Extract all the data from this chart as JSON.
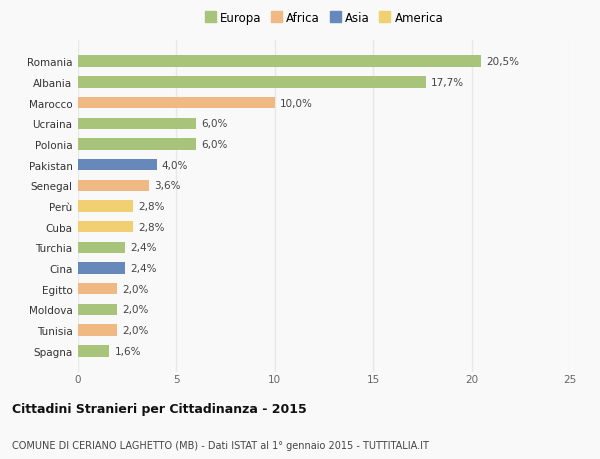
{
  "categories": [
    "Romania",
    "Albania",
    "Marocco",
    "Ucraina",
    "Polonia",
    "Pakistan",
    "Senegal",
    "Perù",
    "Cuba",
    "Turchia",
    "Cina",
    "Egitto",
    "Moldova",
    "Tunisia",
    "Spagna"
  ],
  "values": [
    20.5,
    17.7,
    10.0,
    6.0,
    6.0,
    4.0,
    3.6,
    2.8,
    2.8,
    2.4,
    2.4,
    2.0,
    2.0,
    2.0,
    1.6
  ],
  "continents": [
    "Europa",
    "Europa",
    "Africa",
    "Europa",
    "Europa",
    "Asia",
    "Africa",
    "America",
    "America",
    "Europa",
    "Asia",
    "Africa",
    "Europa",
    "Africa",
    "Europa"
  ],
  "colors": {
    "Europa": "#a8c47a",
    "Africa": "#f0b882",
    "Asia": "#6688bb",
    "America": "#f0d070"
  },
  "legend_order": [
    "Europa",
    "Africa",
    "Asia",
    "America"
  ],
  "title": "Cittadini Stranieri per Cittadinanza - 2015",
  "subtitle": "COMUNE DI CERIANO LAGHETTO (MB) - Dati ISTAT al 1° gennaio 2015 - TUTTITALIA.IT",
  "xlim": [
    0,
    25
  ],
  "xticks": [
    0,
    5,
    10,
    15,
    20,
    25
  ],
  "background_color": "#f9f9f9",
  "grid_color": "#e8e8e8",
  "bar_height": 0.55
}
